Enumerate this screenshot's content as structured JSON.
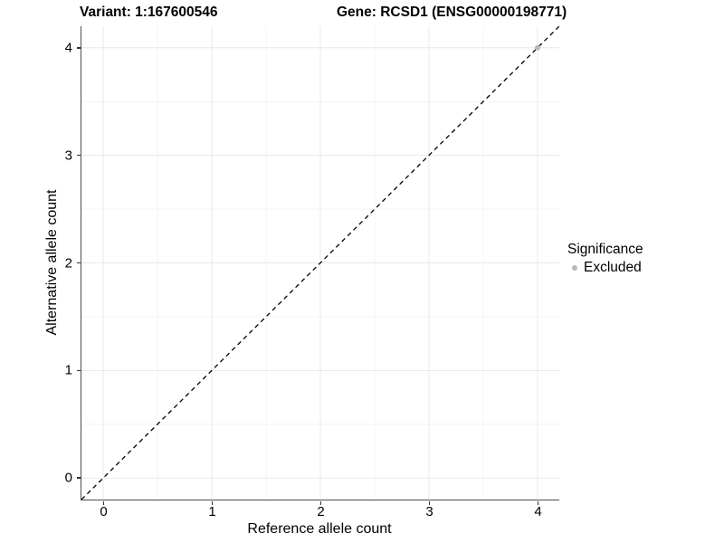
{
  "chart_data": {
    "type": "scatter",
    "title_left": "Variant: 1:167600546",
    "title_right": "Gene: RCSD1 (ENSG00000198771)",
    "xlabel": "Reference allele count",
    "ylabel": "Alternative allele count",
    "xlim": [
      -0.2,
      4.2
    ],
    "ylim": [
      -0.2,
      4.2
    ],
    "x_ticks": [
      0,
      1,
      2,
      3,
      4
    ],
    "y_ticks": [
      0,
      1,
      2,
      3,
      4
    ],
    "grid": "major+minor",
    "reference_line": {
      "kind": "abline",
      "slope": 1,
      "intercept": 0,
      "style": "dashed",
      "color": "#000000"
    },
    "series": [
      {
        "name": "Excluded",
        "color": "#b9b9b9",
        "points": [
          {
            "x": 4,
            "y": 4
          }
        ]
      }
    ],
    "legend": {
      "title": "Significance",
      "position": "right",
      "items": [
        {
          "label": "Excluded",
          "color": "#b9b9b9",
          "marker": "dot-icon"
        }
      ]
    }
  },
  "colors": {
    "background": "#ffffff",
    "grid_major": "#e8e8e8",
    "grid_minor": "#f4f4f4",
    "axis_line": "#4e4e4e",
    "tick_mark": "#333333",
    "text": "#000000",
    "point": "#b9b9b9"
  }
}
